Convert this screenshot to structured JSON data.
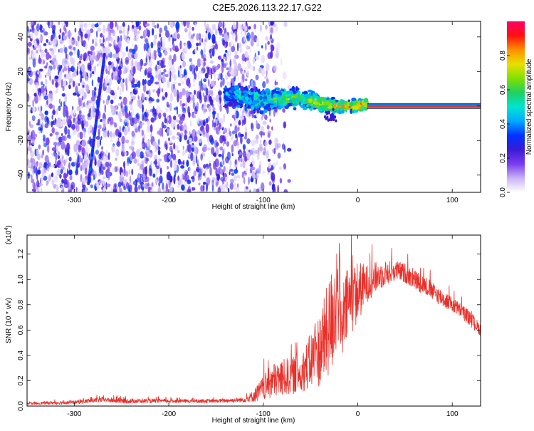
{
  "title": "C2E5.2026.113.22.17.G22",
  "chart_data": [
    {
      "type": "heatmap",
      "panel": "top",
      "xlabel": "Height of straight line (km)",
      "ylabel": "Frequency (Hz)",
      "xlim": [
        -350,
        130
      ],
      "ylim": [
        -50,
        49
      ],
      "x_ticks": [
        "-300",
        "-200",
        "-100",
        "0",
        "100"
      ],
      "x_tick_values": [
        -300,
        -200,
        -100,
        0,
        100
      ],
      "y_ticks": [
        "-40",
        "-20",
        "0",
        "20",
        "40"
      ],
      "y_tick_values": [
        -40,
        -20,
        0,
        20,
        40
      ],
      "colorbar": {
        "label": "Normalized spectral amplitude",
        "range": [
          0.0,
          1.0
        ],
        "ticks": [
          "0.0",
          "0.2",
          "0.4",
          "0.6",
          "0.8"
        ],
        "tick_values": [
          0.0,
          0.2,
          0.4,
          0.6,
          0.8
        ],
        "colors": [
          "#ffffff",
          "#c9b3f5",
          "#7a3cf0",
          "#3a1bd6",
          "#0033ff",
          "#00aaff",
          "#00e5d0",
          "#20d060",
          "#80e000",
          "#e8e000",
          "#ff9000",
          "#ff1010",
          "#ff0066"
        ]
      },
      "features": {
        "noise_region_x": [
          -350,
          -100
        ],
        "meteor_trail": {
          "x": [
            -285,
            -268
          ],
          "y": [
            -45,
            30
          ]
        },
        "signal_band": {
          "x": [
            -140,
            10
          ],
          "center_y": [
            6,
            0
          ],
          "width_hz": [
            10,
            4
          ]
        },
        "tone_line": {
          "x": [
            10,
            130
          ],
          "y": 0,
          "amplitude": 0.95
        }
      }
    },
    {
      "type": "line",
      "panel": "bottom",
      "xlabel": "Height of straight line (km)",
      "ylabel": "SNR (10 * v/v)",
      "ylabel_multiplier": "(x10",
      "ylabel_exponent": "4",
      "ylabel_close": ")",
      "xlim": [
        -350,
        130
      ],
      "ylim": [
        0,
        1.35
      ],
      "x_ticks": [
        "-300",
        "-200",
        "-100",
        "0",
        "100"
      ],
      "x_tick_values": [
        -300,
        -200,
        -100,
        0,
        100
      ],
      "y_ticks": [
        "0.0",
        "0.2",
        "0.4",
        "0.6",
        "0.8",
        "1.0",
        "1.2"
      ],
      "y_tick_values": [
        0.0,
        0.2,
        0.4,
        0.6,
        0.8,
        1.0,
        1.2
      ],
      "series": [
        {
          "name": "SNR",
          "color": "#e8302a",
          "envelope_x": [
            -350,
            -300,
            -270,
            -250,
            -200,
            -150,
            -120,
            -110,
            -100,
            -90,
            -80,
            -60,
            -40,
            -30,
            -25,
            -22,
            -20,
            -17,
            -15,
            -10,
            0,
            10,
            20,
            30,
            40,
            50,
            60,
            70,
            80,
            90,
            100,
            110,
            120,
            130
          ],
          "envelope_y": [
            0.02,
            0.03,
            0.05,
            0.04,
            0.04,
            0.04,
            0.05,
            0.08,
            0.14,
            0.2,
            0.22,
            0.26,
            0.45,
            0.62,
            0.75,
            0.9,
            0.95,
            0.5,
            0.7,
            0.82,
            0.9,
            0.97,
            1.02,
            1.05,
            1.07,
            1.05,
            1.0,
            0.96,
            0.9,
            0.85,
            0.8,
            0.75,
            0.68,
            0.6
          ],
          "noise_amplitude": [
            0.01,
            0.015,
            0.02,
            0.02,
            0.015,
            0.015,
            0.02,
            0.05,
            0.1,
            0.14,
            0.15,
            0.15,
            0.3,
            0.4,
            0.45,
            0.45,
            0.45,
            0.2,
            0.3,
            0.3,
            0.25,
            0.15,
            0.12,
            0.1,
            0.08,
            0.08,
            0.08,
            0.08,
            0.07,
            0.07,
            0.06,
            0.06,
            0.06,
            0.05
          ]
        }
      ]
    }
  ]
}
